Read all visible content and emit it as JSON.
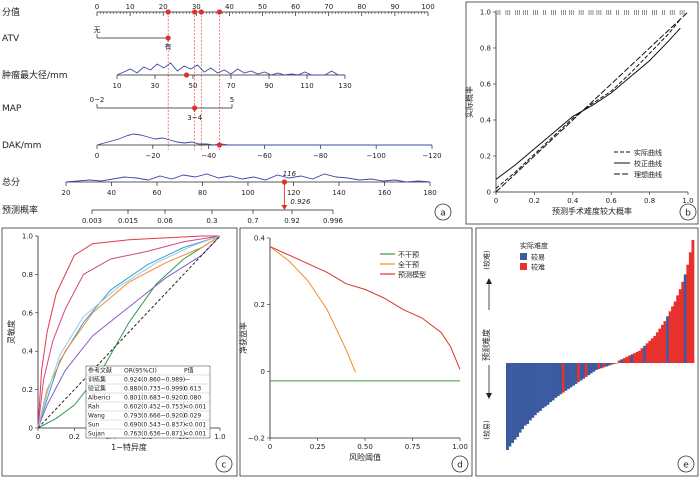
{
  "panels": {
    "a": "a",
    "b": "b",
    "c": "c",
    "d": "d",
    "e": "e"
  },
  "nomogram": {
    "rows": [
      {
        "label": "分值",
        "ticks": [
          "0",
          "10",
          "20",
          "30",
          "40",
          "50",
          "60",
          "70",
          "80",
          "90",
          "100"
        ]
      },
      {
        "label": "ATV",
        "labels": [
          "无",
          "有"
        ]
      },
      {
        "label": "肿瘤最大径/mm",
        "ticks": [
          "10",
          "30",
          "50",
          "70",
          "90",
          "110",
          "130"
        ]
      },
      {
        "label": "MAP",
        "labels": [
          "0~2",
          "5",
          "3~4"
        ]
      },
      {
        "label": "DAK/mm",
        "ticks": [
          "0",
          "−20",
          "−40",
          "−60",
          "−80",
          "−100",
          "−120"
        ]
      },
      {
        "label": "总分",
        "ticks": [
          "20",
          "40",
          "60",
          "80",
          "100",
          "120",
          "140",
          "160",
          "180"
        ]
      },
      {
        "label": "预测概率",
        "ticks": [
          "0.003",
          "0.015",
          "0.06",
          "0.3",
          "0.7",
          "0.92",
          "0.996"
        ]
      }
    ],
    "total_points_value": "116",
    "predicted_probability_value": "0.926"
  },
  "chart_data": [
    {
      "panel": "b",
      "type": "line",
      "title": "",
      "xlabel": "预测手术难度较大概率",
      "ylabel": "实际概率",
      "xlim": [
        0,
        1
      ],
      "ylim": [
        0,
        1
      ],
      "x_ticks": [
        "0",
        "0.2",
        "0.4",
        "0.6",
        "0.8",
        "1.0"
      ],
      "y_ticks": [
        "0",
        "0.2",
        "0.4",
        "0.6",
        "0.8",
        "1.0"
      ],
      "legend": [
        "实际曲线",
        "校正曲线",
        "理想曲线"
      ],
      "legend_position": "bottom-right",
      "series": [
        {
          "name": "实际曲线",
          "x": [
            0,
            0.1,
            0.2,
            0.3,
            0.4,
            0.5,
            0.6,
            0.7,
            0.8,
            0.9,
            0.96
          ],
          "y": [
            0.02,
            0.11,
            0.21,
            0.31,
            0.41,
            0.49,
            0.56,
            0.66,
            0.77,
            0.88,
            0.96
          ]
        },
        {
          "name": "校正曲线",
          "x": [
            0,
            0.1,
            0.2,
            0.3,
            0.4,
            0.5,
            0.6,
            0.7,
            0.8,
            0.9,
            0.96
          ],
          "y": [
            0.07,
            0.15,
            0.24,
            0.33,
            0.42,
            0.48,
            0.55,
            0.64,
            0.73,
            0.84,
            0.91
          ]
        },
        {
          "name": "理想曲线",
          "x": [
            0,
            1
          ],
          "y": [
            0,
            1
          ]
        }
      ]
    },
    {
      "panel": "c",
      "type": "line",
      "title": "",
      "xlabel": "1−特异度",
      "ylabel": "灵敏度",
      "xlim": [
        0,
        1
      ],
      "ylim": [
        0,
        1
      ],
      "x_ticks": [
        "0",
        "0.2",
        "0.4",
        "0.6",
        "0.8",
        "1.0"
      ],
      "y_ticks": [
        "0",
        "0.2",
        "0.4",
        "0.6",
        "0.8",
        "1.0"
      ],
      "table_headers": [
        "参考文献",
        "OR(95%CI)",
        "P值"
      ],
      "table_rows": [
        [
          "训练集",
          "0.924(0.860~0.989)",
          "—"
        ],
        [
          "验证集",
          "0.880(0.733~0.999)",
          "0.613"
        ],
        [
          "Alberici",
          "0.801(0.683~0.920)",
          "0.080"
        ],
        [
          "Rah",
          "0.602(0.452~0.753)",
          "<0.001"
        ],
        [
          "Wang",
          "0.793(0.666~0.920)",
          "0.029"
        ],
        [
          "Sun",
          "0.690(0.543~0.837)",
          "<0.001"
        ],
        [
          "Sujan",
          "0.763(0.636~0.871)",
          "<0.001"
        ]
      ],
      "series": [
        {
          "name": "训练集",
          "color": "#e8364c",
          "x": [
            0,
            0.02,
            0.05,
            0.1,
            0.2,
            0.3,
            0.5,
            0.7,
            0.9,
            1
          ],
          "y": [
            0,
            0.3,
            0.5,
            0.7,
            0.9,
            0.96,
            0.98,
            0.99,
            1,
            1
          ]
        },
        {
          "name": "验证集",
          "color": "#d6458c",
          "x": [
            0,
            0.03,
            0.08,
            0.15,
            0.25,
            0.4,
            0.6,
            0.8,
            1
          ],
          "y": [
            0,
            0.25,
            0.45,
            0.62,
            0.8,
            0.88,
            0.92,
            0.97,
            1
          ]
        },
        {
          "name": "Alberici",
          "color": "#3a9fcf",
          "x": [
            0,
            0.05,
            0.12,
            0.25,
            0.4,
            0.6,
            0.8,
            1
          ],
          "y": [
            0,
            0.15,
            0.35,
            0.55,
            0.72,
            0.85,
            0.94,
            1
          ]
        },
        {
          "name": "Rah",
          "color": "#2e9a55",
          "x": [
            0,
            0.1,
            0.2,
            0.35,
            0.5,
            0.65,
            0.8,
            1
          ],
          "y": [
            0,
            0.05,
            0.12,
            0.3,
            0.55,
            0.75,
            0.88,
            1
          ]
        },
        {
          "name": "Wang",
          "color": "#f08a2c",
          "x": [
            0,
            0.05,
            0.15,
            0.3,
            0.5,
            0.7,
            0.9,
            1
          ],
          "y": [
            0,
            0.2,
            0.4,
            0.6,
            0.76,
            0.86,
            0.94,
            1
          ]
        },
        {
          "name": "Sun",
          "color": "#8a5fbf",
          "x": [
            0,
            0.05,
            0.15,
            0.3,
            0.5,
            0.7,
            0.9,
            1
          ],
          "y": [
            0,
            0.12,
            0.3,
            0.48,
            0.63,
            0.78,
            0.9,
            1
          ]
        },
        {
          "name": "Sujan",
          "color": "#9ac9e8",
          "x": [
            0,
            0.05,
            0.12,
            0.25,
            0.45,
            0.65,
            0.85,
            1
          ],
          "y": [
            0,
            0.18,
            0.38,
            0.58,
            0.74,
            0.86,
            0.95,
            1
          ]
        },
        {
          "name": "参考线",
          "color": "#222222",
          "x": [
            0,
            1
          ],
          "y": [
            0,
            1
          ]
        }
      ]
    },
    {
      "panel": "d",
      "type": "line",
      "title": "",
      "xlabel": "风险阈值",
      "ylabel": "净获益率",
      "xlim": [
        0,
        1
      ],
      "ylim": [
        -0.2,
        0.5
      ],
      "x_ticks": [
        "0",
        "0.25",
        "0.50",
        "0.75",
        "1.00"
      ],
      "y_ticks": [
        "−0.2",
        "0",
        "0.2",
        "0.4"
      ],
      "legend": [
        "不干预",
        "全干预",
        "预测模型"
      ],
      "legend_position": "top-right",
      "series": [
        {
          "name": "不干预",
          "color": "#3a9a3a",
          "x": [
            0,
            1
          ],
          "y": [
            0,
            0
          ]
        },
        {
          "name": "全干预",
          "color": "#f08a2c",
          "x": [
            0,
            0.1,
            0.2,
            0.3,
            0.4,
            0.45
          ],
          "y": [
            0.47,
            0.42,
            0.35,
            0.25,
            0.11,
            0.03
          ]
        },
        {
          "name": "预测模型",
          "color": "#d9342b",
          "x": [
            0,
            0.1,
            0.2,
            0.3,
            0.4,
            0.5,
            0.6,
            0.7,
            0.8,
            0.9,
            0.95,
            1
          ],
          "y": [
            0.47,
            0.44,
            0.41,
            0.38,
            0.34,
            0.32,
            0.29,
            0.25,
            0.22,
            0.17,
            0.12,
            0.04
          ]
        }
      ]
    },
    {
      "panel": "e",
      "type": "bar",
      "title": "",
      "legend_title": "实际难度",
      "legend": [
        "较易",
        "较难"
      ],
      "colors": {
        "较易": "#3b5aa0",
        "较难": "#e8302c"
      },
      "ylabel": "预测难度",
      "y_top_label": "(较难)",
      "y_bottom_label": "(较易)",
      "note": "waterfall: bars sorted by predicted difficulty; negative bars mostly 较易, positive bars mostly 较难",
      "values": [
        -1.0,
        -0.96,
        -0.92,
        -0.88,
        -0.85,
        -0.8,
        -0.76,
        -0.72,
        -0.7,
        -0.66,
        -0.63,
        -0.6,
        -0.57,
        -0.55,
        -0.52,
        -0.5,
        -0.48,
        -0.45,
        -0.43,
        -0.4,
        -0.38,
        -0.36,
        -0.34,
        -0.32,
        -0.3,
        -0.28,
        -0.26,
        -0.24,
        -0.22,
        -0.2,
        -0.18,
        -0.16,
        -0.14,
        -0.12,
        -0.1,
        -0.08,
        -0.07,
        -0.06,
        -0.05,
        -0.04,
        -0.03,
        -0.02,
        -0.01,
        0.0,
        0.02,
        0.03,
        0.04,
        0.05,
        0.06,
        0.07,
        0.08,
        0.09,
        0.1,
        0.12,
        0.14,
        0.16,
        0.18,
        0.2,
        0.22,
        0.25,
        0.28,
        0.31,
        0.34,
        0.38,
        0.42,
        0.46,
        0.5,
        0.55,
        0.6,
        0.66,
        0.72,
        0.8,
        0.9,
        1.0
      ],
      "classes": [
        "较易",
        "较易",
        "较易",
        "较易",
        "较易",
        "较易",
        "较易",
        "较易",
        "较易",
        "较易",
        "较易",
        "较易",
        "较易",
        "较易",
        "较易",
        "较易",
        "较易",
        "较易",
        "较易",
        "较易",
        "较易",
        "较易",
        "较难",
        "较易",
        "较易",
        "较易",
        "较易",
        "较易",
        "较难",
        "较易",
        "较易",
        "较难",
        "较易",
        "较易",
        "较易",
        "较易",
        "较难",
        "较易",
        "较难",
        "较易",
        "较易",
        "较难",
        "较易",
        "较难",
        "较难",
        "较易",
        "较难",
        "较难",
        "较难",
        "较易",
        "较难",
        "较难",
        "较难",
        "较难",
        "较易",
        "较难",
        "较难",
        "较难",
        "较难",
        "较难",
        "较难",
        "较难",
        "较难",
        "较易",
        "较难",
        "较难",
        "较难",
        "较难",
        "较难",
        "较难",
        "较易",
        "较难",
        "较难",
        "较难"
      ]
    }
  ]
}
